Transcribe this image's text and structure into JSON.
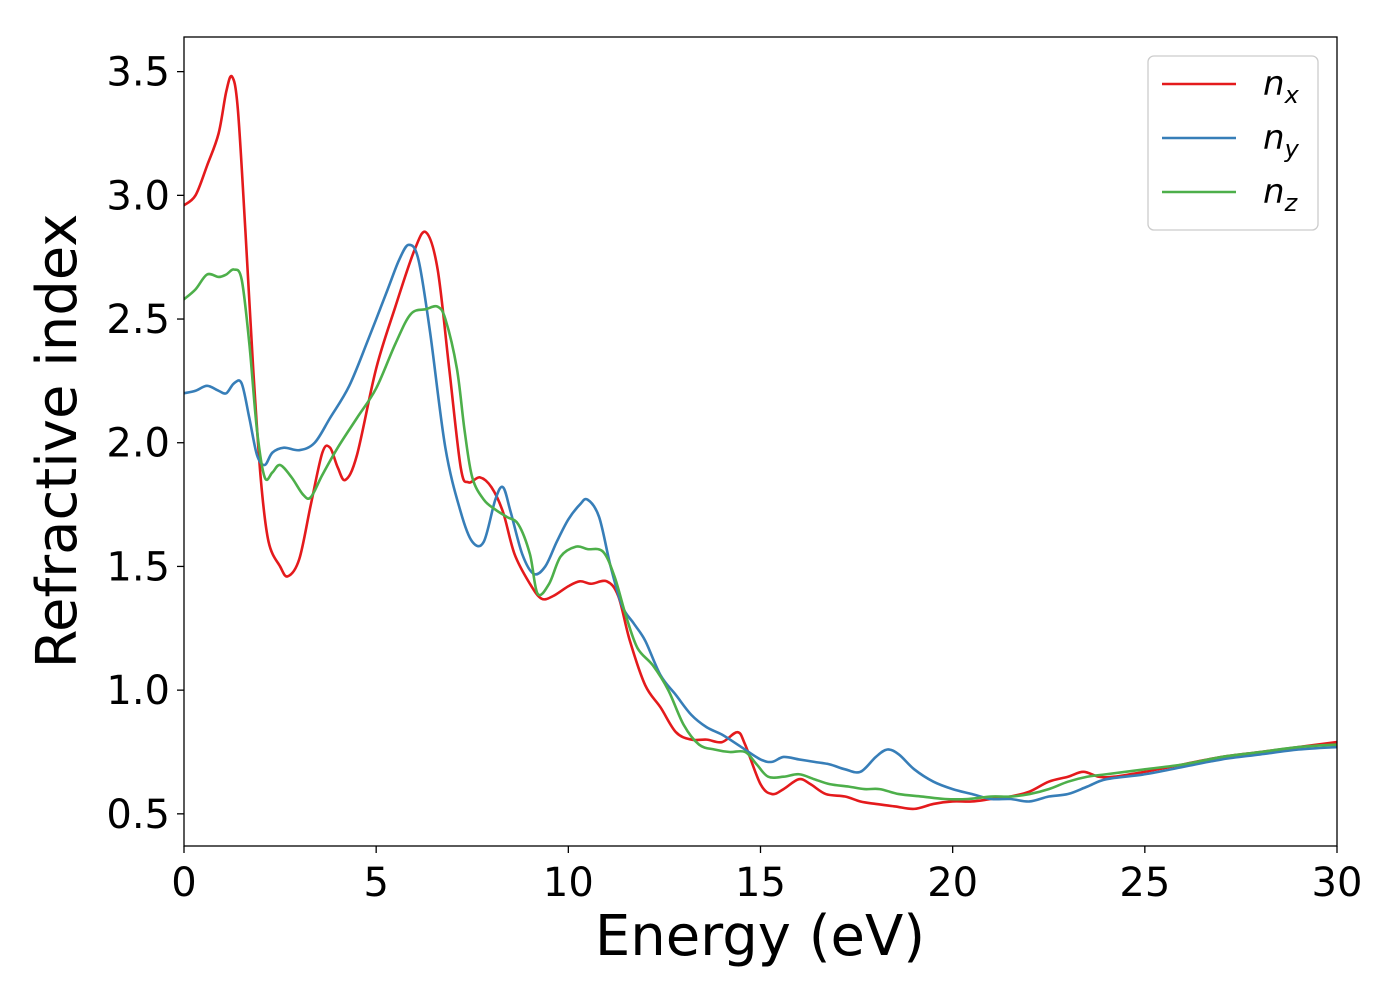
{
  "chart_data": {
    "type": "line",
    "title": "",
    "xlabel": "Energy (eV)",
    "ylabel": "Refractive index",
    "xlim": [
      0,
      30
    ],
    "ylim": [
      0.37,
      3.64
    ],
    "xticks": [
      0,
      5,
      10,
      15,
      20,
      25,
      30
    ],
    "xtick_labels": [
      "0",
      "5",
      "10",
      "15",
      "20",
      "25",
      "30"
    ],
    "yticks": [
      0.5,
      1.0,
      1.5,
      2.0,
      2.5,
      3.0,
      3.5
    ],
    "ytick_labels": [
      "0.5",
      "1.0",
      "1.5",
      "2.0",
      "2.5",
      "3.0",
      "3.5"
    ],
    "grid": false,
    "legend_position": "top-right",
    "series": [
      {
        "name": "n",
        "subscript": "x",
        "color": "#e41a1c",
        "points": [
          [
            0,
            2.96
          ],
          [
            0.3,
            3.0
          ],
          [
            0.6,
            3.12
          ],
          [
            0.9,
            3.25
          ],
          [
            1.1,
            3.42
          ],
          [
            1.25,
            3.48
          ],
          [
            1.4,
            3.35
          ],
          [
            1.6,
            2.85
          ],
          [
            1.8,
            2.3
          ],
          [
            2.0,
            1.85
          ],
          [
            2.2,
            1.6
          ],
          [
            2.5,
            1.5
          ],
          [
            2.7,
            1.46
          ],
          [
            3.0,
            1.53
          ],
          [
            3.3,
            1.75
          ],
          [
            3.6,
            1.96
          ],
          [
            3.8,
            1.98
          ],
          [
            4.0,
            1.9
          ],
          [
            4.2,
            1.85
          ],
          [
            4.5,
            1.95
          ],
          [
            5.0,
            2.3
          ],
          [
            5.5,
            2.55
          ],
          [
            6.0,
            2.78
          ],
          [
            6.3,
            2.85
          ],
          [
            6.6,
            2.7
          ],
          [
            6.9,
            2.3
          ],
          [
            7.2,
            1.9
          ],
          [
            7.4,
            1.84
          ],
          [
            7.7,
            1.86
          ],
          [
            8.0,
            1.82
          ],
          [
            8.3,
            1.72
          ],
          [
            8.6,
            1.55
          ],
          [
            9.0,
            1.43
          ],
          [
            9.3,
            1.37
          ],
          [
            9.6,
            1.38
          ],
          [
            10.0,
            1.42
          ],
          [
            10.3,
            1.44
          ],
          [
            10.6,
            1.43
          ],
          [
            11.0,
            1.44
          ],
          [
            11.3,
            1.38
          ],
          [
            11.6,
            1.2
          ],
          [
            12.0,
            1.02
          ],
          [
            12.4,
            0.93
          ],
          [
            12.8,
            0.83
          ],
          [
            13.2,
            0.8
          ],
          [
            13.6,
            0.8
          ],
          [
            14.0,
            0.79
          ],
          [
            14.4,
            0.83
          ],
          [
            14.6,
            0.78
          ],
          [
            15.0,
            0.62
          ],
          [
            15.3,
            0.58
          ],
          [
            15.6,
            0.6
          ],
          [
            16.0,
            0.64
          ],
          [
            16.3,
            0.62
          ],
          [
            16.7,
            0.58
          ],
          [
            17.2,
            0.57
          ],
          [
            17.6,
            0.55
          ],
          [
            18.0,
            0.54
          ],
          [
            18.5,
            0.53
          ],
          [
            19.0,
            0.52
          ],
          [
            19.5,
            0.54
          ],
          [
            20.0,
            0.55
          ],
          [
            20.5,
            0.55
          ],
          [
            21.0,
            0.56
          ],
          [
            21.5,
            0.57
          ],
          [
            22.0,
            0.59
          ],
          [
            22.5,
            0.63
          ],
          [
            23.0,
            0.65
          ],
          [
            23.4,
            0.67
          ],
          [
            23.8,
            0.65
          ],
          [
            24.2,
            0.65
          ],
          [
            25.0,
            0.67
          ],
          [
            26.0,
            0.7
          ],
          [
            27.0,
            0.73
          ],
          [
            28.0,
            0.75
          ],
          [
            29.0,
            0.77
          ],
          [
            30.0,
            0.79
          ]
        ]
      },
      {
        "name": "n",
        "subscript": "y",
        "color": "#377eb8",
        "points": [
          [
            0,
            2.2
          ],
          [
            0.3,
            2.21
          ],
          [
            0.6,
            2.23
          ],
          [
            0.9,
            2.21
          ],
          [
            1.1,
            2.2
          ],
          [
            1.3,
            2.24
          ],
          [
            1.5,
            2.24
          ],
          [
            1.7,
            2.1
          ],
          [
            1.9,
            1.95
          ],
          [
            2.1,
            1.91
          ],
          [
            2.3,
            1.96
          ],
          [
            2.6,
            1.98
          ],
          [
            3.0,
            1.97
          ],
          [
            3.4,
            2.0
          ],
          [
            3.8,
            2.1
          ],
          [
            4.3,
            2.23
          ],
          [
            4.8,
            2.42
          ],
          [
            5.3,
            2.62
          ],
          [
            5.6,
            2.74
          ],
          [
            5.85,
            2.8
          ],
          [
            6.1,
            2.74
          ],
          [
            6.4,
            2.45
          ],
          [
            6.8,
            1.98
          ],
          [
            7.2,
            1.72
          ],
          [
            7.5,
            1.6
          ],
          [
            7.8,
            1.6
          ],
          [
            8.1,
            1.77
          ],
          [
            8.3,
            1.82
          ],
          [
            8.5,
            1.72
          ],
          [
            8.8,
            1.55
          ],
          [
            9.1,
            1.47
          ],
          [
            9.4,
            1.5
          ],
          [
            9.7,
            1.6
          ],
          [
            10.0,
            1.69
          ],
          [
            10.3,
            1.75
          ],
          [
            10.5,
            1.77
          ],
          [
            10.8,
            1.7
          ],
          [
            11.1,
            1.5
          ],
          [
            11.4,
            1.34
          ],
          [
            11.7,
            1.27
          ],
          [
            12.0,
            1.2
          ],
          [
            12.4,
            1.06
          ],
          [
            12.8,
            0.98
          ],
          [
            13.2,
            0.9
          ],
          [
            13.6,
            0.85
          ],
          [
            14.0,
            0.82
          ],
          [
            14.5,
            0.77
          ],
          [
            15.0,
            0.72
          ],
          [
            15.3,
            0.71
          ],
          [
            15.6,
            0.73
          ],
          [
            16.0,
            0.72
          ],
          [
            16.4,
            0.71
          ],
          [
            16.8,
            0.7
          ],
          [
            17.2,
            0.68
          ],
          [
            17.6,
            0.67
          ],
          [
            18.0,
            0.73
          ],
          [
            18.3,
            0.76
          ],
          [
            18.6,
            0.74
          ],
          [
            19.0,
            0.68
          ],
          [
            19.5,
            0.63
          ],
          [
            20.0,
            0.6
          ],
          [
            20.5,
            0.58
          ],
          [
            21.0,
            0.56
          ],
          [
            21.5,
            0.56
          ],
          [
            22.0,
            0.55
          ],
          [
            22.5,
            0.57
          ],
          [
            23.0,
            0.58
          ],
          [
            23.5,
            0.61
          ],
          [
            24.0,
            0.64
          ],
          [
            25.0,
            0.66
          ],
          [
            26.0,
            0.69
          ],
          [
            27.0,
            0.72
          ],
          [
            28.0,
            0.74
          ],
          [
            29.0,
            0.76
          ],
          [
            30.0,
            0.77
          ]
        ]
      },
      {
        "name": "n",
        "subscript": "z",
        "color": "#4daf4a",
        "points": [
          [
            0,
            2.58
          ],
          [
            0.3,
            2.62
          ],
          [
            0.6,
            2.68
          ],
          [
            0.9,
            2.67
          ],
          [
            1.1,
            2.68
          ],
          [
            1.3,
            2.7
          ],
          [
            1.5,
            2.66
          ],
          [
            1.7,
            2.4
          ],
          [
            1.9,
            2.05
          ],
          [
            2.1,
            1.86
          ],
          [
            2.3,
            1.88
          ],
          [
            2.5,
            1.91
          ],
          [
            2.8,
            1.86
          ],
          [
            3.1,
            1.79
          ],
          [
            3.3,
            1.78
          ],
          [
            3.6,
            1.87
          ],
          [
            4.0,
            1.98
          ],
          [
            4.5,
            2.1
          ],
          [
            5.0,
            2.22
          ],
          [
            5.5,
            2.4
          ],
          [
            5.9,
            2.52
          ],
          [
            6.3,
            2.54
          ],
          [
            6.6,
            2.55
          ],
          [
            6.8,
            2.5
          ],
          [
            7.1,
            2.3
          ],
          [
            7.3,
            2.05
          ],
          [
            7.5,
            1.86
          ],
          [
            7.8,
            1.77
          ],
          [
            8.1,
            1.73
          ],
          [
            8.4,
            1.7
          ],
          [
            8.7,
            1.67
          ],
          [
            9.0,
            1.55
          ],
          [
            9.2,
            1.39
          ],
          [
            9.5,
            1.43
          ],
          [
            9.8,
            1.54
          ],
          [
            10.2,
            1.58
          ],
          [
            10.5,
            1.57
          ],
          [
            10.9,
            1.56
          ],
          [
            11.2,
            1.46
          ],
          [
            11.5,
            1.3
          ],
          [
            11.8,
            1.17
          ],
          [
            12.2,
            1.1
          ],
          [
            12.6,
            1.0
          ],
          [
            13.0,
            0.86
          ],
          [
            13.4,
            0.78
          ],
          [
            13.8,
            0.76
          ],
          [
            14.2,
            0.75
          ],
          [
            14.6,
            0.75
          ],
          [
            14.9,
            0.7
          ],
          [
            15.2,
            0.65
          ],
          [
            15.6,
            0.65
          ],
          [
            16.0,
            0.66
          ],
          [
            16.4,
            0.64
          ],
          [
            16.8,
            0.62
          ],
          [
            17.3,
            0.61
          ],
          [
            17.7,
            0.6
          ],
          [
            18.1,
            0.6
          ],
          [
            18.6,
            0.58
          ],
          [
            19.2,
            0.57
          ],
          [
            19.8,
            0.56
          ],
          [
            20.4,
            0.56
          ],
          [
            21.0,
            0.57
          ],
          [
            21.5,
            0.57
          ],
          [
            22.0,
            0.58
          ],
          [
            22.5,
            0.6
          ],
          [
            23.0,
            0.63
          ],
          [
            23.5,
            0.65
          ],
          [
            24.0,
            0.66
          ],
          [
            25.0,
            0.68
          ],
          [
            26.0,
            0.7
          ],
          [
            27.0,
            0.73
          ],
          [
            28.0,
            0.75
          ],
          [
            29.0,
            0.77
          ],
          [
            30.0,
            0.78
          ]
        ]
      }
    ]
  }
}
